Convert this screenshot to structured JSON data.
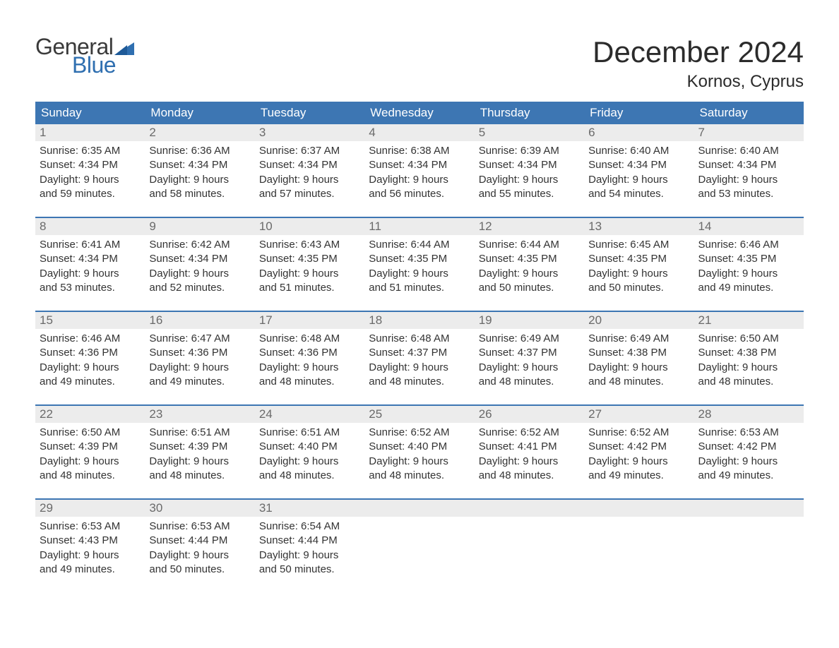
{
  "colors": {
    "header_bg": "#3d76b3",
    "header_text": "#ffffff",
    "daynum_bg": "#ececec",
    "daynum_text": "#6a6a6a",
    "body_text": "#333333",
    "week_border": "#3d76b3",
    "logo_blue": "#2f6fb0",
    "logo_dark": "#3a3a3a"
  },
  "logo": {
    "word1": "General",
    "word2": "Blue"
  },
  "title": "December 2024",
  "subtitle": "Kornos, Cyprus",
  "day_labels": [
    "Sunday",
    "Monday",
    "Tuesday",
    "Wednesday",
    "Thursday",
    "Friday",
    "Saturday"
  ],
  "weeks": [
    [
      {
        "n": "1",
        "sunrise": "6:35 AM",
        "sunset": "4:34 PM",
        "dl1": "9 hours",
        "dl2": "and 59 minutes."
      },
      {
        "n": "2",
        "sunrise": "6:36 AM",
        "sunset": "4:34 PM",
        "dl1": "9 hours",
        "dl2": "and 58 minutes."
      },
      {
        "n": "3",
        "sunrise": "6:37 AM",
        "sunset": "4:34 PM",
        "dl1": "9 hours",
        "dl2": "and 57 minutes."
      },
      {
        "n": "4",
        "sunrise": "6:38 AM",
        "sunset": "4:34 PM",
        "dl1": "9 hours",
        "dl2": "and 56 minutes."
      },
      {
        "n": "5",
        "sunrise": "6:39 AM",
        "sunset": "4:34 PM",
        "dl1": "9 hours",
        "dl2": "and 55 minutes."
      },
      {
        "n": "6",
        "sunrise": "6:40 AM",
        "sunset": "4:34 PM",
        "dl1": "9 hours",
        "dl2": "and 54 minutes."
      },
      {
        "n": "7",
        "sunrise": "6:40 AM",
        "sunset": "4:34 PM",
        "dl1": "9 hours",
        "dl2": "and 53 minutes."
      }
    ],
    [
      {
        "n": "8",
        "sunrise": "6:41 AM",
        "sunset": "4:34 PM",
        "dl1": "9 hours",
        "dl2": "and 53 minutes."
      },
      {
        "n": "9",
        "sunrise": "6:42 AM",
        "sunset": "4:34 PM",
        "dl1": "9 hours",
        "dl2": "and 52 minutes."
      },
      {
        "n": "10",
        "sunrise": "6:43 AM",
        "sunset": "4:35 PM",
        "dl1": "9 hours",
        "dl2": "and 51 minutes."
      },
      {
        "n": "11",
        "sunrise": "6:44 AM",
        "sunset": "4:35 PM",
        "dl1": "9 hours",
        "dl2": "and 51 minutes."
      },
      {
        "n": "12",
        "sunrise": "6:44 AM",
        "sunset": "4:35 PM",
        "dl1": "9 hours",
        "dl2": "and 50 minutes."
      },
      {
        "n": "13",
        "sunrise": "6:45 AM",
        "sunset": "4:35 PM",
        "dl1": "9 hours",
        "dl2": "and 50 minutes."
      },
      {
        "n": "14",
        "sunrise": "6:46 AM",
        "sunset": "4:35 PM",
        "dl1": "9 hours",
        "dl2": "and 49 minutes."
      }
    ],
    [
      {
        "n": "15",
        "sunrise": "6:46 AM",
        "sunset": "4:36 PM",
        "dl1": "9 hours",
        "dl2": "and 49 minutes."
      },
      {
        "n": "16",
        "sunrise": "6:47 AM",
        "sunset": "4:36 PM",
        "dl1": "9 hours",
        "dl2": "and 49 minutes."
      },
      {
        "n": "17",
        "sunrise": "6:48 AM",
        "sunset": "4:36 PM",
        "dl1": "9 hours",
        "dl2": "and 48 minutes."
      },
      {
        "n": "18",
        "sunrise": "6:48 AM",
        "sunset": "4:37 PM",
        "dl1": "9 hours",
        "dl2": "and 48 minutes."
      },
      {
        "n": "19",
        "sunrise": "6:49 AM",
        "sunset": "4:37 PM",
        "dl1": "9 hours",
        "dl2": "and 48 minutes."
      },
      {
        "n": "20",
        "sunrise": "6:49 AM",
        "sunset": "4:38 PM",
        "dl1": "9 hours",
        "dl2": "and 48 minutes."
      },
      {
        "n": "21",
        "sunrise": "6:50 AM",
        "sunset": "4:38 PM",
        "dl1": "9 hours",
        "dl2": "and 48 minutes."
      }
    ],
    [
      {
        "n": "22",
        "sunrise": "6:50 AM",
        "sunset": "4:39 PM",
        "dl1": "9 hours",
        "dl2": "and 48 minutes."
      },
      {
        "n": "23",
        "sunrise": "6:51 AM",
        "sunset": "4:39 PM",
        "dl1": "9 hours",
        "dl2": "and 48 minutes."
      },
      {
        "n": "24",
        "sunrise": "6:51 AM",
        "sunset": "4:40 PM",
        "dl1": "9 hours",
        "dl2": "and 48 minutes."
      },
      {
        "n": "25",
        "sunrise": "6:52 AM",
        "sunset": "4:40 PM",
        "dl1": "9 hours",
        "dl2": "and 48 minutes."
      },
      {
        "n": "26",
        "sunrise": "6:52 AM",
        "sunset": "4:41 PM",
        "dl1": "9 hours",
        "dl2": "and 48 minutes."
      },
      {
        "n": "27",
        "sunrise": "6:52 AM",
        "sunset": "4:42 PM",
        "dl1": "9 hours",
        "dl2": "and 49 minutes."
      },
      {
        "n": "28",
        "sunrise": "6:53 AM",
        "sunset": "4:42 PM",
        "dl1": "9 hours",
        "dl2": "and 49 minutes."
      }
    ],
    [
      {
        "n": "29",
        "sunrise": "6:53 AM",
        "sunset": "4:43 PM",
        "dl1": "9 hours",
        "dl2": "and 49 minutes."
      },
      {
        "n": "30",
        "sunrise": "6:53 AM",
        "sunset": "4:44 PM",
        "dl1": "9 hours",
        "dl2": "and 50 minutes."
      },
      {
        "n": "31",
        "sunrise": "6:54 AM",
        "sunset": "4:44 PM",
        "dl1": "9 hours",
        "dl2": "and 50 minutes."
      },
      null,
      null,
      null,
      null
    ]
  ],
  "labels": {
    "sunrise": "Sunrise: ",
    "sunset": "Sunset: ",
    "daylight": "Daylight: "
  }
}
